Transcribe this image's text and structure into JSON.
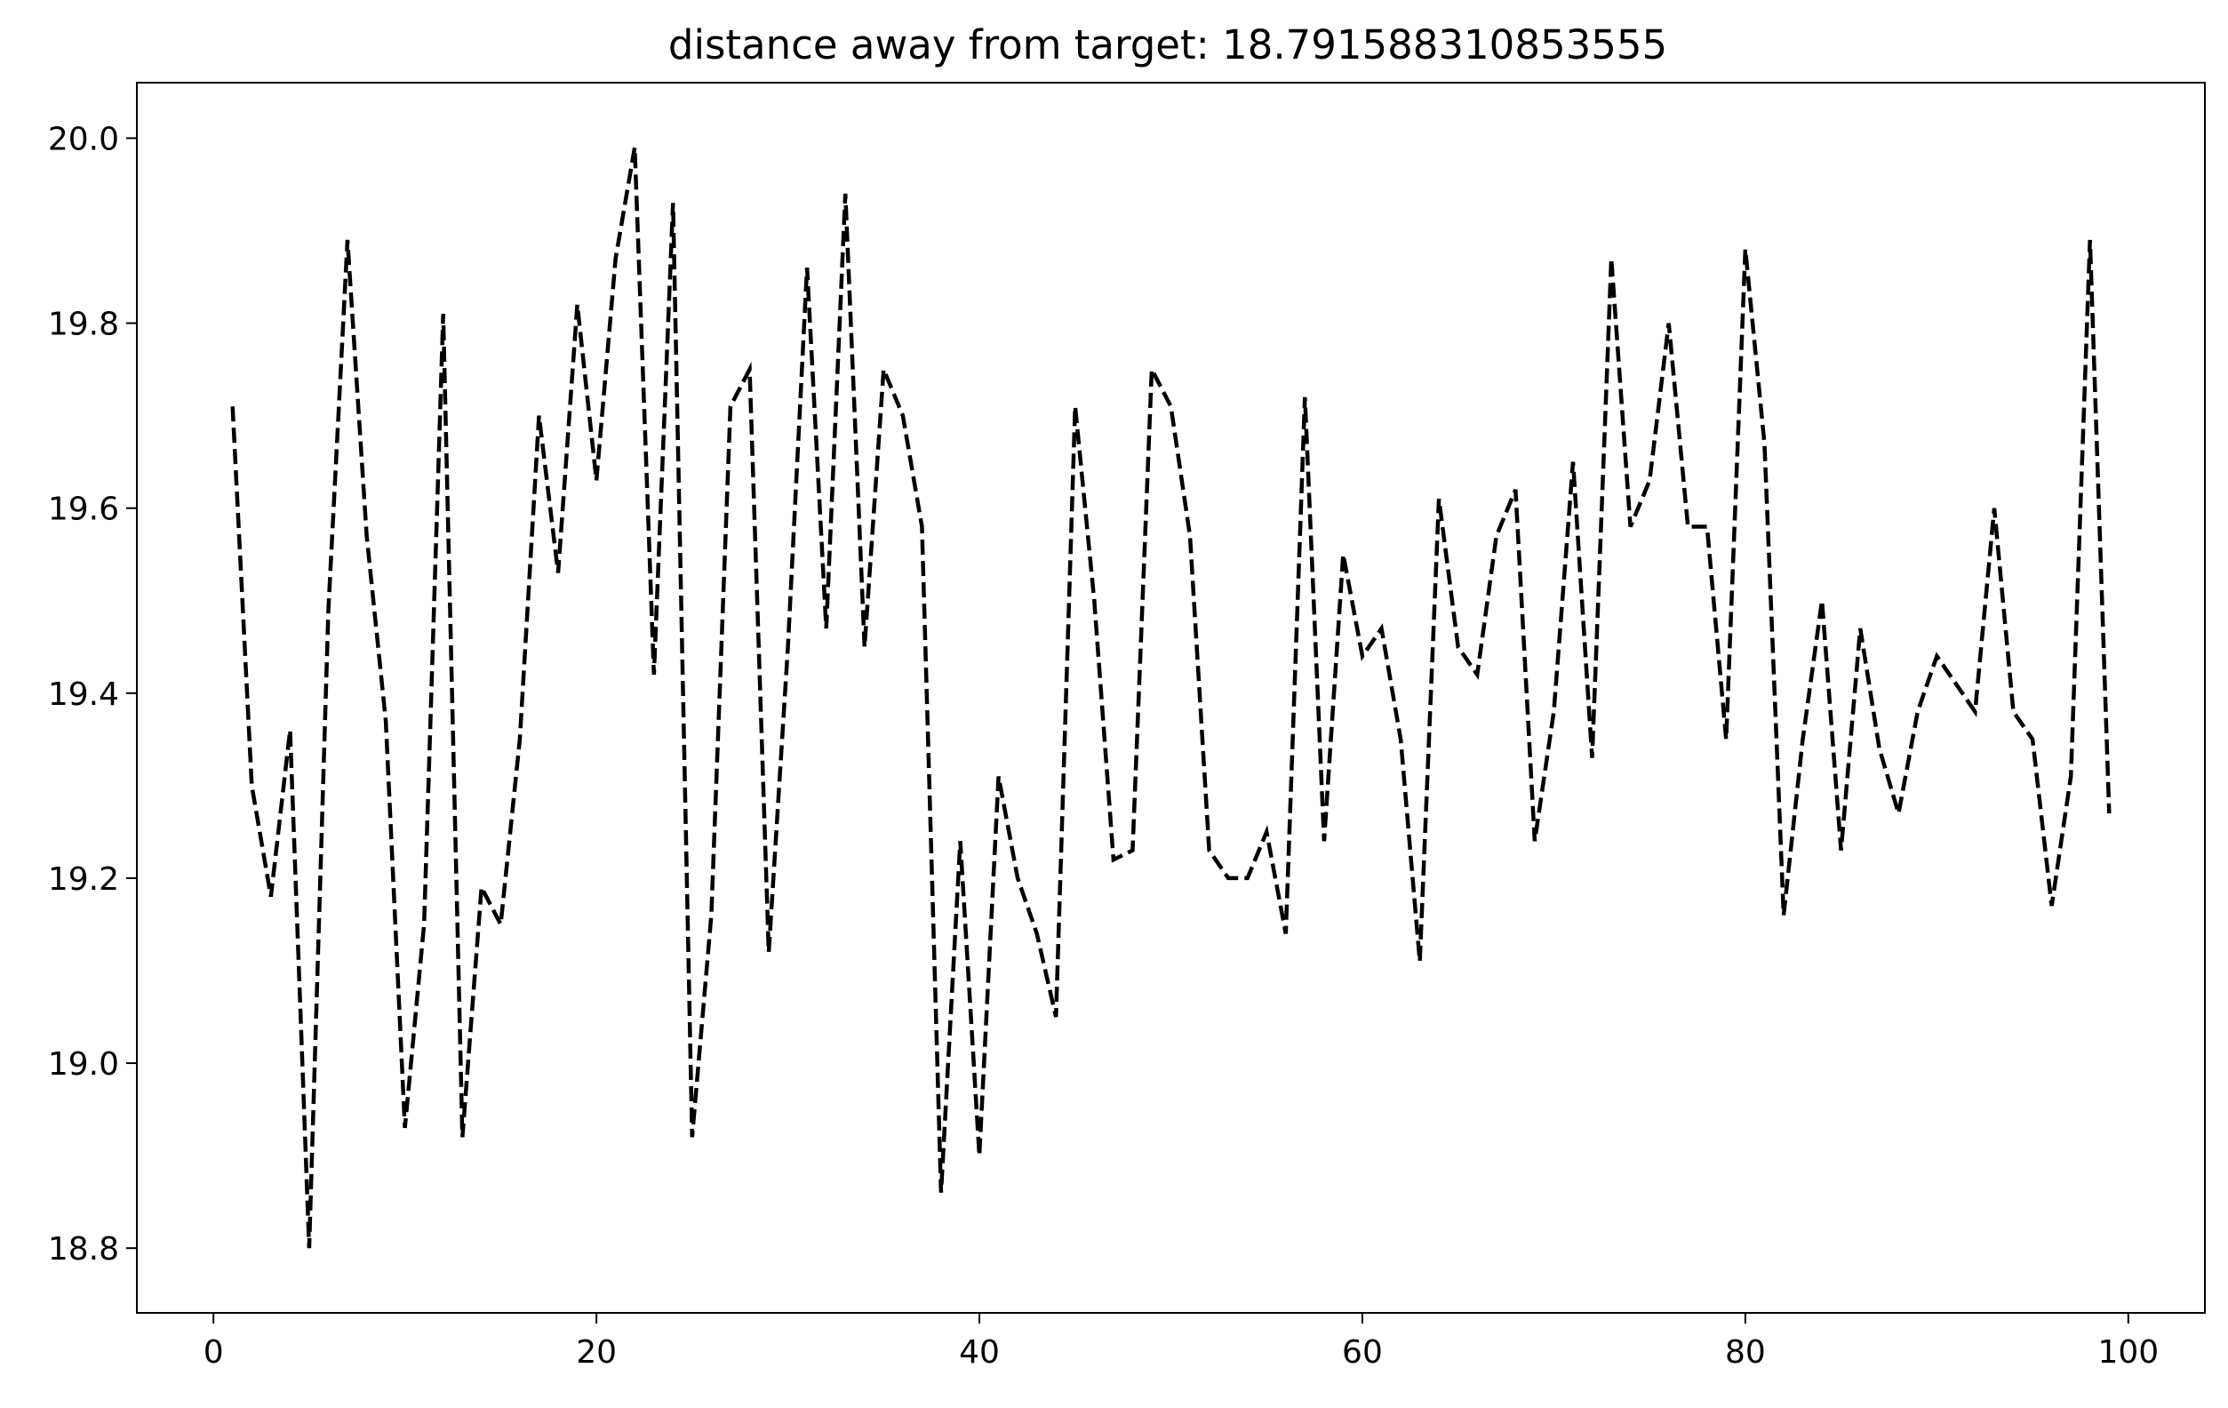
{
  "chart_data": {
    "type": "line",
    "title": "distance away from target: 18.791588310853555",
    "xlabel": "",
    "ylabel": "",
    "xlim": [
      -4,
      104
    ],
    "ylim": [
      18.73,
      20.06
    ],
    "x_ticks": [
      0,
      20,
      40,
      60,
      80,
      100
    ],
    "y_ticks": [
      18.8,
      19.0,
      19.2,
      19.4,
      19.6,
      19.8,
      20.0
    ],
    "x_tick_labels": [
      "0",
      "20",
      "40",
      "60",
      "80",
      "100"
    ],
    "y_tick_labels": [
      "18.8",
      "19.0",
      "19.2",
      "19.4",
      "19.6",
      "19.8",
      "20.0"
    ],
    "grid": false,
    "legend": "none",
    "series": [
      {
        "color": "#000000",
        "line_style": "dashed",
        "x": [
          1,
          2,
          3,
          4,
          5,
          6,
          7,
          8,
          9,
          10,
          11,
          12,
          13,
          14,
          15,
          16,
          17,
          18,
          19,
          20,
          21,
          22,
          23,
          24,
          25,
          26,
          27,
          28,
          29,
          30,
          31,
          32,
          33,
          34,
          35,
          36,
          37,
          38,
          39,
          40,
          41,
          42,
          43,
          44,
          45,
          46,
          47,
          48,
          49,
          50,
          51,
          52,
          53,
          54,
          55,
          56,
          57,
          58,
          59,
          60,
          61,
          62,
          63,
          64,
          65,
          66,
          67,
          68,
          69,
          70,
          71,
          72,
          73,
          74,
          75,
          76,
          77,
          78,
          79,
          80,
          81,
          82,
          83,
          84,
          85,
          86,
          87,
          88,
          89,
          90,
          91,
          92,
          93,
          94,
          95,
          96,
          97,
          98,
          99
        ],
        "values": [
          19.71,
          19.3,
          19.18,
          19.36,
          18.8,
          19.49,
          19.89,
          19.57,
          19.37,
          18.93,
          19.15,
          19.81,
          18.92,
          19.19,
          19.15,
          19.35,
          19.7,
          19.53,
          19.82,
          19.63,
          19.87,
          19.99,
          19.42,
          19.93,
          18.92,
          19.16,
          19.71,
          19.75,
          19.12,
          19.45,
          19.86,
          19.47,
          19.94,
          19.45,
          19.75,
          19.7,
          19.58,
          18.86,
          19.24,
          18.9,
          19.31,
          19.2,
          19.14,
          19.05,
          19.71,
          19.5,
          19.22,
          19.23,
          19.75,
          19.71,
          19.57,
          19.23,
          19.2,
          19.2,
          19.25,
          19.14,
          19.72,
          19.24,
          19.55,
          19.44,
          19.47,
          19.35,
          19.11,
          19.61,
          19.45,
          19.42,
          19.57,
          19.62,
          19.24,
          19.38,
          19.65,
          19.33,
          19.87,
          19.58,
          19.63,
          19.8,
          19.58,
          19.58,
          19.35,
          19.88,
          19.67,
          19.16,
          19.35,
          19.5,
          19.23,
          19.47,
          19.34,
          19.27,
          19.38,
          19.44,
          19.41,
          19.38,
          19.6,
          19.38,
          19.35,
          19.17,
          19.31,
          19.89,
          19.27
        ]
      }
    ]
  }
}
